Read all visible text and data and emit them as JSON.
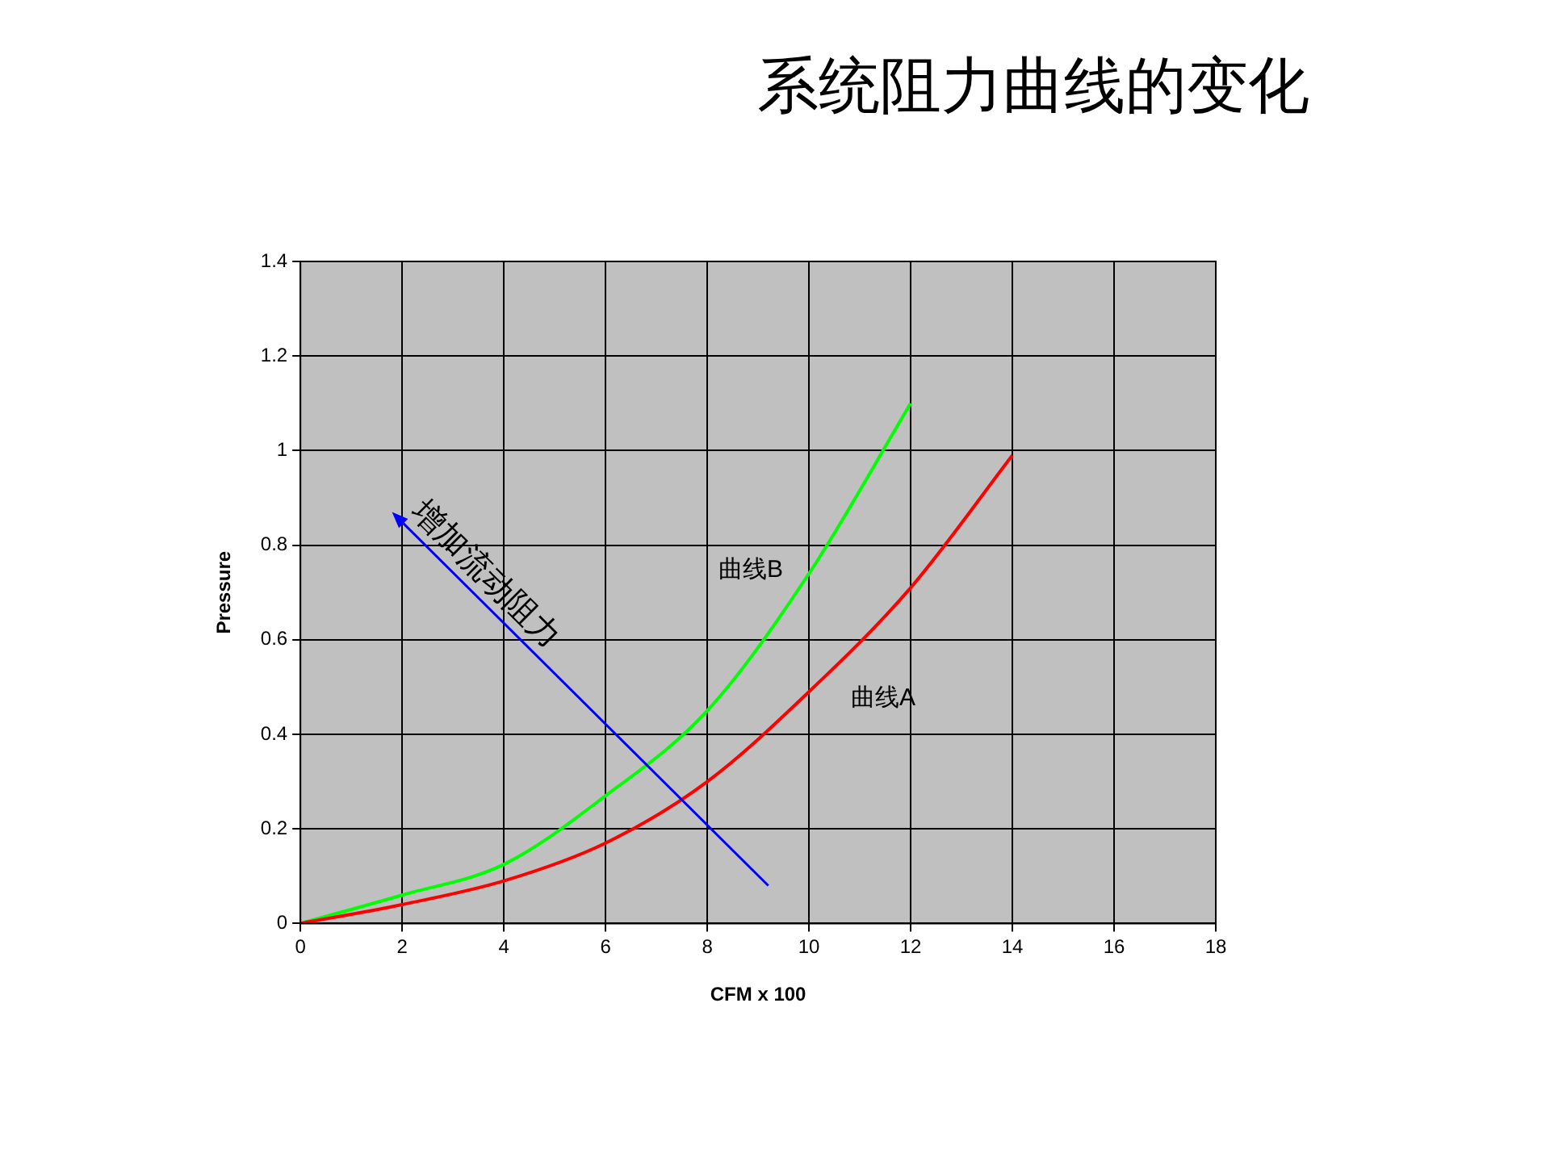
{
  "chart_data": {
    "type": "line",
    "title": "系统阻力曲线的变化",
    "xlabel": "CFM x 100",
    "ylabel": "Pressure",
    "xlim": [
      0,
      18
    ],
    "xticks": [
      0,
      2,
      4,
      6,
      8,
      10,
      12,
      14,
      16,
      18
    ],
    "ylim": [
      0,
      1.4
    ],
    "yticks": [
      0,
      0.2,
      0.4,
      0.6,
      0.8,
      1,
      1.2,
      1.4
    ],
    "grid": true,
    "legend": false,
    "marker": "none",
    "line_style": "solid",
    "series": [
      {
        "name": "曲线A",
        "color": "#ff0000",
        "x": [
          0,
          2,
          4,
          6,
          8,
          10,
          12,
          14
        ],
        "values": [
          0,
          0.04,
          0.09,
          0.17,
          0.3,
          0.49,
          0.71,
          0.99
        ]
      },
      {
        "name": "曲线B",
        "color": "#00ff00",
        "x": [
          0,
          2,
          4,
          6,
          8,
          10,
          12
        ],
        "values": [
          0,
          0.06,
          0.125,
          0.27,
          0.45,
          0.74,
          1.1
        ]
      }
    ],
    "annotations": [
      "增加流动阻力"
    ]
  }
}
